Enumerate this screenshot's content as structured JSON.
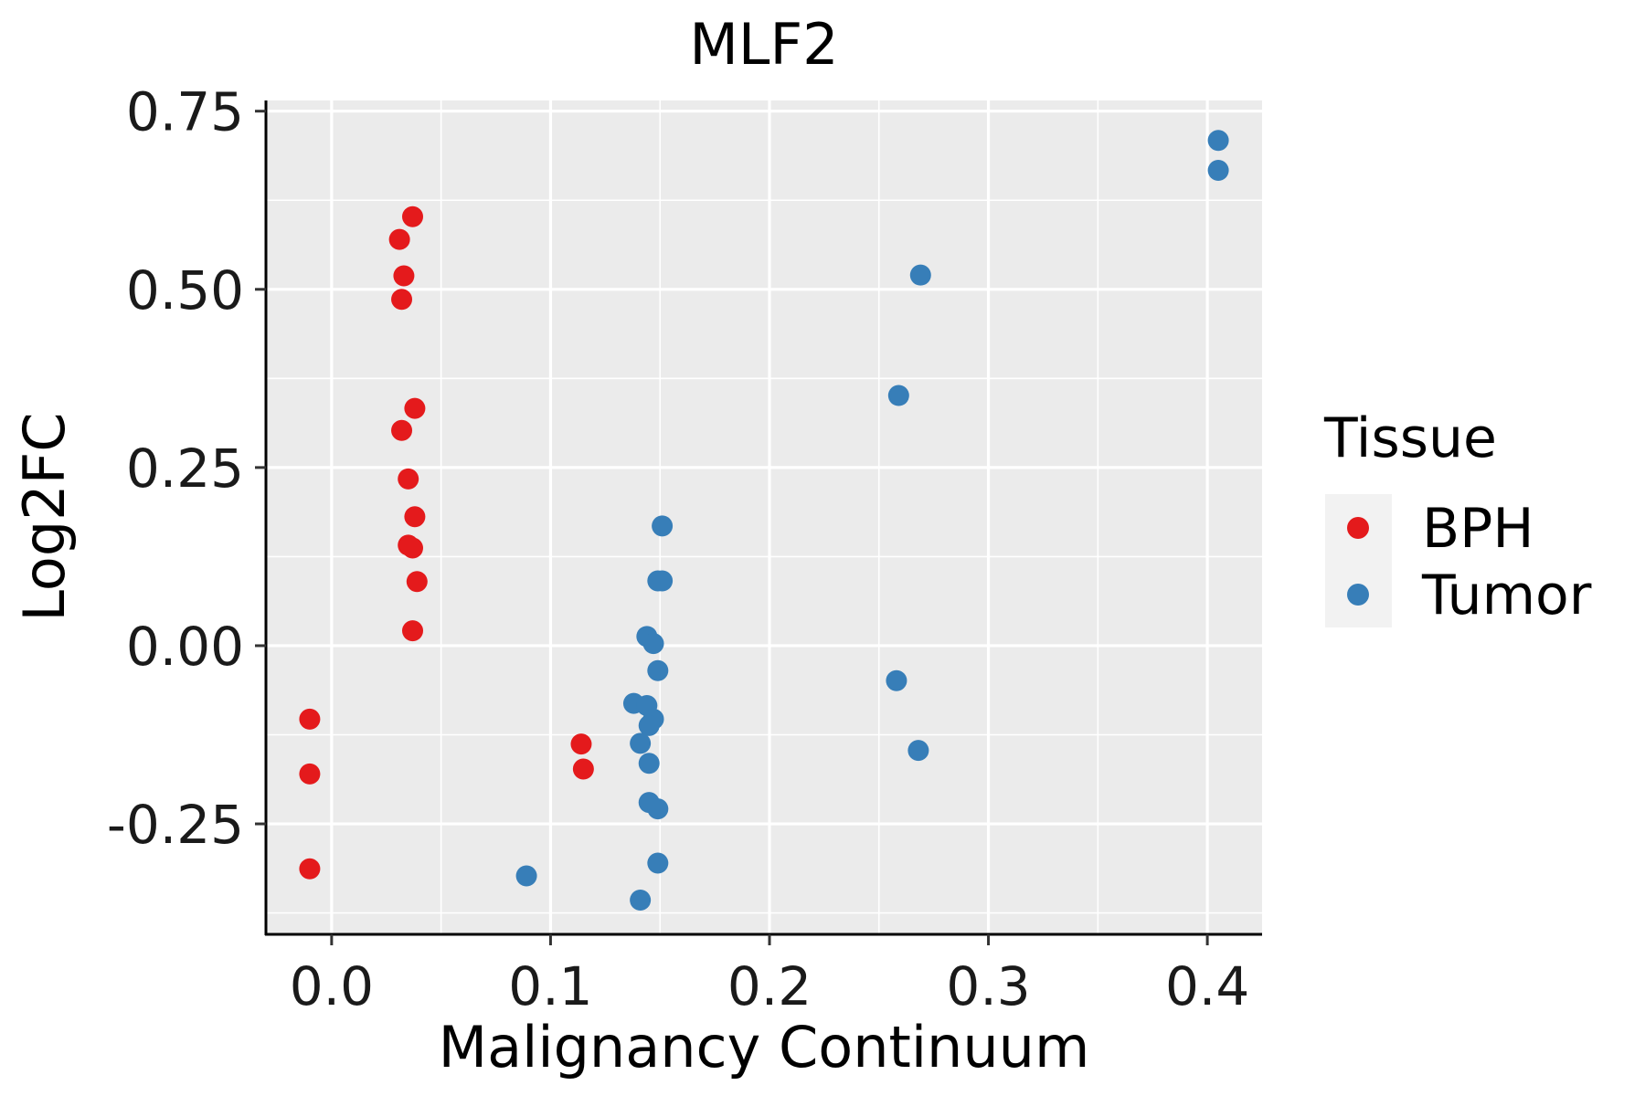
{
  "chart_data": {
    "type": "scatter",
    "title": "MLF2",
    "xlabel": "Malignancy Continuum",
    "ylabel": "Log2FC",
    "xlim": [
      -0.03,
      0.425
    ],
    "ylim": [
      -0.405,
      0.765
    ],
    "xticks": [
      0.0,
      0.1,
      0.2,
      0.3,
      0.4
    ],
    "xtick_labels": [
      "0.0",
      "0.1",
      "0.2",
      "0.3",
      "0.4"
    ],
    "yticks": [
      -0.25,
      0.0,
      0.25,
      0.5,
      0.75
    ],
    "ytick_labels": [
      "-0.25",
      "0.00",
      "0.25",
      "0.50",
      "0.75"
    ],
    "grid": true,
    "legend": {
      "title": "Tissue",
      "position": "right",
      "entries": [
        {
          "name": "BPH",
          "color": "#E41A1C"
        },
        {
          "name": "Tumor",
          "color": "#377EB8"
        }
      ]
    },
    "series": [
      {
        "name": "BPH",
        "color": "#E41A1C",
        "points": [
          {
            "x": 0.037,
            "y": 0.602
          },
          {
            "x": 0.031,
            "y": 0.57
          },
          {
            "x": 0.033,
            "y": 0.519
          },
          {
            "x": 0.032,
            "y": 0.486
          },
          {
            "x": 0.038,
            "y": 0.333
          },
          {
            "x": 0.032,
            "y": 0.302
          },
          {
            "x": 0.035,
            "y": 0.234
          },
          {
            "x": 0.038,
            "y": 0.181
          },
          {
            "x": 0.035,
            "y": 0.141
          },
          {
            "x": 0.037,
            "y": 0.137
          },
          {
            "x": 0.039,
            "y": 0.09
          },
          {
            "x": 0.037,
            "y": 0.021
          },
          {
            "x": -0.01,
            "y": -0.103
          },
          {
            "x": -0.01,
            "y": -0.18
          },
          {
            "x": -0.01,
            "y": -0.313
          },
          {
            "x": 0.114,
            "y": -0.138
          },
          {
            "x": 0.115,
            "y": -0.173
          }
        ]
      },
      {
        "name": "Tumor",
        "color": "#377EB8",
        "points": [
          {
            "x": 0.405,
            "y": 0.709
          },
          {
            "x": 0.405,
            "y": 0.667
          },
          {
            "x": 0.269,
            "y": 0.52
          },
          {
            "x": 0.259,
            "y": 0.351
          },
          {
            "x": 0.151,
            "y": 0.168
          },
          {
            "x": 0.149,
            "y": 0.091
          },
          {
            "x": 0.151,
            "y": 0.091
          },
          {
            "x": 0.144,
            "y": 0.013
          },
          {
            "x": 0.147,
            "y": 0.003
          },
          {
            "x": 0.149,
            "y": -0.035
          },
          {
            "x": 0.258,
            "y": -0.049
          },
          {
            "x": 0.138,
            "y": -0.081
          },
          {
            "x": 0.144,
            "y": -0.084
          },
          {
            "x": 0.147,
            "y": -0.103
          },
          {
            "x": 0.145,
            "y": -0.112
          },
          {
            "x": 0.141,
            "y": -0.137
          },
          {
            "x": 0.145,
            "y": -0.165
          },
          {
            "x": 0.268,
            "y": -0.147
          },
          {
            "x": 0.145,
            "y": -0.22
          },
          {
            "x": 0.149,
            "y": -0.229
          },
          {
            "x": 0.149,
            "y": -0.305
          },
          {
            "x": 0.089,
            "y": -0.323
          },
          {
            "x": 0.141,
            "y": -0.357
          }
        ]
      }
    ]
  }
}
